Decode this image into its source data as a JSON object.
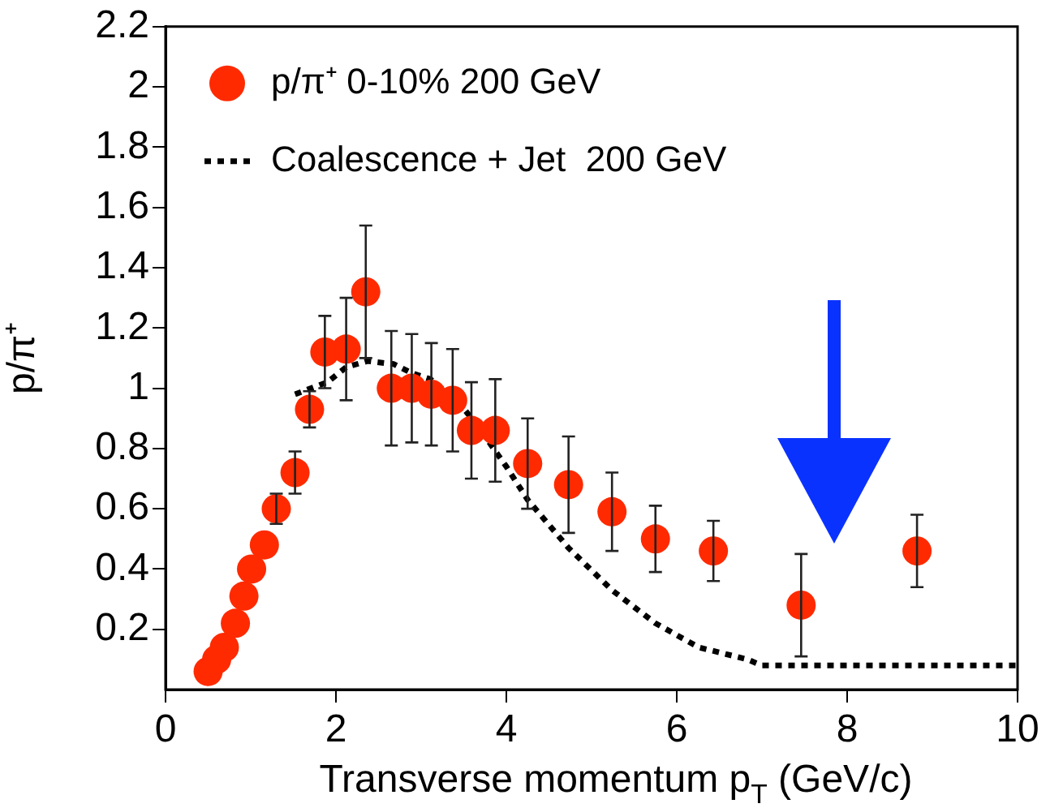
{
  "chart_data": {
    "type": "scatter",
    "xlabel": "Transverse momentum p$_{T}$ (GeV/c)",
    "ylabel": "p/π⁺",
    "xlim": [
      0,
      10
    ],
    "xticks": [
      0,
      2,
      4,
      6,
      8,
      10
    ],
    "ylim": [
      0,
      2.2
    ],
    "yticks": [
      0.2,
      0.4,
      0.6,
      0.8,
      1,
      1.2,
      1.4,
      1.6,
      1.8,
      2,
      2.2
    ],
    "grid": false,
    "legend": "top left",
    "marker": "circle",
    "series": [
      {
        "name": "p/π⁺ 0-10% 200 GeV",
        "type": "scatter",
        "color": "#ff2a00",
        "x": [
          0.5,
          0.6,
          0.69,
          0.82,
          0.92,
          1.01,
          1.16,
          1.3,
          1.52,
          1.69,
          1.87,
          2.12,
          2.35,
          2.65,
          2.89,
          3.12,
          3.37,
          3.59,
          3.87,
          4.25,
          4.73,
          5.24,
          5.75,
          6.43,
          7.46,
          8.82
        ],
        "values": [
          0.06,
          0.1,
          0.14,
          0.22,
          0.31,
          0.4,
          0.48,
          0.6,
          0.72,
          0.93,
          1.12,
          1.13,
          1.32,
          1.0,
          1.0,
          0.98,
          0.96,
          0.86,
          0.86,
          0.75,
          0.68,
          0.59,
          0.5,
          0.46,
          0.28,
          0.46
        ],
        "errors": [
          null,
          null,
          null,
          null,
          null,
          null,
          null,
          0.05,
          0.07,
          0.06,
          0.12,
          0.17,
          0.22,
          0.19,
          0.18,
          0.17,
          0.17,
          0.16,
          0.17,
          0.15,
          0.16,
          0.13,
          0.11,
          0.1,
          0.17,
          0.12
        ]
      },
      {
        "name": "Coalescence + Jet  200 GeV",
        "type": "line",
        "color": "#000000",
        "line_style": "dotted",
        "marker": "none",
        "x": [
          1.52,
          1.9,
          2.12,
          2.37,
          2.68,
          2.89,
          3.11,
          3.45,
          3.65,
          4.0,
          4.25,
          4.73,
          5.24,
          5.75,
          6.26,
          6.83,
          7.0,
          10
        ],
        "values": [
          0.98,
          1.02,
          1.07,
          1.09,
          1.08,
          1.05,
          1.03,
          0.95,
          0.88,
          0.74,
          0.63,
          0.47,
          0.33,
          0.22,
          0.14,
          0.1,
          0.08,
          0.08
        ]
      }
    ]
  }
}
